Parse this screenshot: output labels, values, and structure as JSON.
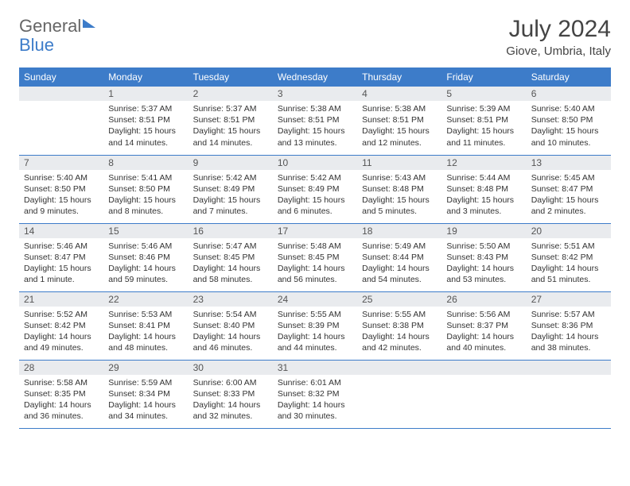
{
  "logo": {
    "part1": "General",
    "part2": "Blue"
  },
  "title": "July 2024",
  "location": "Giove, Umbria, Italy",
  "colors": {
    "header_bg": "#3d7cc9",
    "header_text": "#ffffff",
    "daynum_bg": "#e9ebee",
    "row_border": "#3d7cc9",
    "body_text": "#333333",
    "page_bg": "#ffffff"
  },
  "weekdays": [
    "Sunday",
    "Monday",
    "Tuesday",
    "Wednesday",
    "Thursday",
    "Friday",
    "Saturday"
  ],
  "weeks": [
    [
      {
        "day": "",
        "lines": []
      },
      {
        "day": "1",
        "lines": [
          "Sunrise: 5:37 AM",
          "Sunset: 8:51 PM",
          "Daylight: 15 hours and 14 minutes."
        ]
      },
      {
        "day": "2",
        "lines": [
          "Sunrise: 5:37 AM",
          "Sunset: 8:51 PM",
          "Daylight: 15 hours and 14 minutes."
        ]
      },
      {
        "day": "3",
        "lines": [
          "Sunrise: 5:38 AM",
          "Sunset: 8:51 PM",
          "Daylight: 15 hours and 13 minutes."
        ]
      },
      {
        "day": "4",
        "lines": [
          "Sunrise: 5:38 AM",
          "Sunset: 8:51 PM",
          "Daylight: 15 hours and 12 minutes."
        ]
      },
      {
        "day": "5",
        "lines": [
          "Sunrise: 5:39 AM",
          "Sunset: 8:51 PM",
          "Daylight: 15 hours and 11 minutes."
        ]
      },
      {
        "day": "6",
        "lines": [
          "Sunrise: 5:40 AM",
          "Sunset: 8:50 PM",
          "Daylight: 15 hours and 10 minutes."
        ]
      }
    ],
    [
      {
        "day": "7",
        "lines": [
          "Sunrise: 5:40 AM",
          "Sunset: 8:50 PM",
          "Daylight: 15 hours and 9 minutes."
        ]
      },
      {
        "day": "8",
        "lines": [
          "Sunrise: 5:41 AM",
          "Sunset: 8:50 PM",
          "Daylight: 15 hours and 8 minutes."
        ]
      },
      {
        "day": "9",
        "lines": [
          "Sunrise: 5:42 AM",
          "Sunset: 8:49 PM",
          "Daylight: 15 hours and 7 minutes."
        ]
      },
      {
        "day": "10",
        "lines": [
          "Sunrise: 5:42 AM",
          "Sunset: 8:49 PM",
          "Daylight: 15 hours and 6 minutes."
        ]
      },
      {
        "day": "11",
        "lines": [
          "Sunrise: 5:43 AM",
          "Sunset: 8:48 PM",
          "Daylight: 15 hours and 5 minutes."
        ]
      },
      {
        "day": "12",
        "lines": [
          "Sunrise: 5:44 AM",
          "Sunset: 8:48 PM",
          "Daylight: 15 hours and 3 minutes."
        ]
      },
      {
        "day": "13",
        "lines": [
          "Sunrise: 5:45 AM",
          "Sunset: 8:47 PM",
          "Daylight: 15 hours and 2 minutes."
        ]
      }
    ],
    [
      {
        "day": "14",
        "lines": [
          "Sunrise: 5:46 AM",
          "Sunset: 8:47 PM",
          "Daylight: 15 hours and 1 minute."
        ]
      },
      {
        "day": "15",
        "lines": [
          "Sunrise: 5:46 AM",
          "Sunset: 8:46 PM",
          "Daylight: 14 hours and 59 minutes."
        ]
      },
      {
        "day": "16",
        "lines": [
          "Sunrise: 5:47 AM",
          "Sunset: 8:45 PM",
          "Daylight: 14 hours and 58 minutes."
        ]
      },
      {
        "day": "17",
        "lines": [
          "Sunrise: 5:48 AM",
          "Sunset: 8:45 PM",
          "Daylight: 14 hours and 56 minutes."
        ]
      },
      {
        "day": "18",
        "lines": [
          "Sunrise: 5:49 AM",
          "Sunset: 8:44 PM",
          "Daylight: 14 hours and 54 minutes."
        ]
      },
      {
        "day": "19",
        "lines": [
          "Sunrise: 5:50 AM",
          "Sunset: 8:43 PM",
          "Daylight: 14 hours and 53 minutes."
        ]
      },
      {
        "day": "20",
        "lines": [
          "Sunrise: 5:51 AM",
          "Sunset: 8:42 PM",
          "Daylight: 14 hours and 51 minutes."
        ]
      }
    ],
    [
      {
        "day": "21",
        "lines": [
          "Sunrise: 5:52 AM",
          "Sunset: 8:42 PM",
          "Daylight: 14 hours and 49 minutes."
        ]
      },
      {
        "day": "22",
        "lines": [
          "Sunrise: 5:53 AM",
          "Sunset: 8:41 PM",
          "Daylight: 14 hours and 48 minutes."
        ]
      },
      {
        "day": "23",
        "lines": [
          "Sunrise: 5:54 AM",
          "Sunset: 8:40 PM",
          "Daylight: 14 hours and 46 minutes."
        ]
      },
      {
        "day": "24",
        "lines": [
          "Sunrise: 5:55 AM",
          "Sunset: 8:39 PM",
          "Daylight: 14 hours and 44 minutes."
        ]
      },
      {
        "day": "25",
        "lines": [
          "Sunrise: 5:55 AM",
          "Sunset: 8:38 PM",
          "Daylight: 14 hours and 42 minutes."
        ]
      },
      {
        "day": "26",
        "lines": [
          "Sunrise: 5:56 AM",
          "Sunset: 8:37 PM",
          "Daylight: 14 hours and 40 minutes."
        ]
      },
      {
        "day": "27",
        "lines": [
          "Sunrise: 5:57 AM",
          "Sunset: 8:36 PM",
          "Daylight: 14 hours and 38 minutes."
        ]
      }
    ],
    [
      {
        "day": "28",
        "lines": [
          "Sunrise: 5:58 AM",
          "Sunset: 8:35 PM",
          "Daylight: 14 hours and 36 minutes."
        ]
      },
      {
        "day": "29",
        "lines": [
          "Sunrise: 5:59 AM",
          "Sunset: 8:34 PM",
          "Daylight: 14 hours and 34 minutes."
        ]
      },
      {
        "day": "30",
        "lines": [
          "Sunrise: 6:00 AM",
          "Sunset: 8:33 PM",
          "Daylight: 14 hours and 32 minutes."
        ]
      },
      {
        "day": "31",
        "lines": [
          "Sunrise: 6:01 AM",
          "Sunset: 8:32 PM",
          "Daylight: 14 hours and 30 minutes."
        ]
      },
      {
        "day": "",
        "lines": []
      },
      {
        "day": "",
        "lines": []
      },
      {
        "day": "",
        "lines": []
      }
    ]
  ]
}
